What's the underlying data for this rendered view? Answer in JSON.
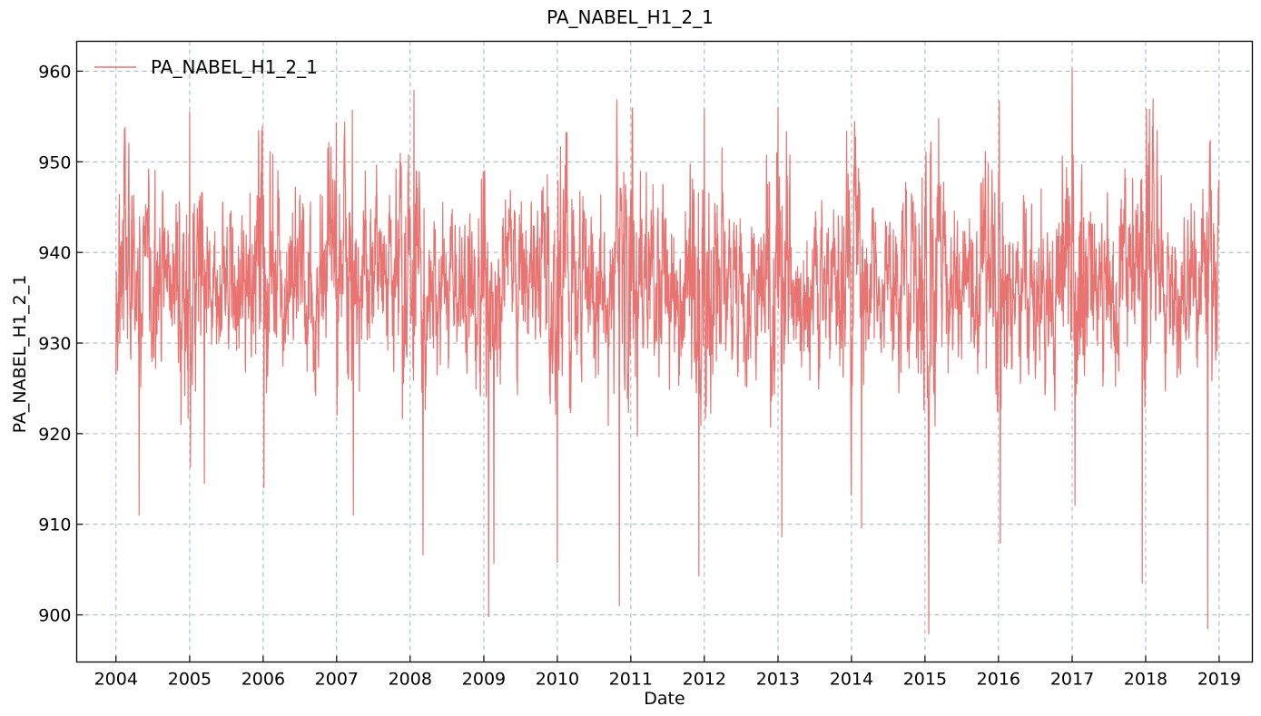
{
  "chart_data": {
    "type": "line",
    "title": "PA_NABEL_H1_2_1",
    "xlabel": "Date",
    "ylabel": "PA_NABEL_H1_2_1",
    "x_ticks": [
      "2004",
      "2005",
      "2006",
      "2007",
      "2008",
      "2009",
      "2010",
      "2011",
      "2012",
      "2013",
      "2014",
      "2015",
      "2016",
      "2017",
      "2018",
      "2019"
    ],
    "y_ticks": [
      900,
      910,
      920,
      930,
      940,
      950,
      960
    ],
    "xlim": [
      "2003-06-20",
      "2019-06-15"
    ],
    "ylim": [
      894.8,
      963.3
    ],
    "grid": true,
    "legend": {
      "position": "top-left",
      "entries": [
        "PA_NABEL_H1_2_1"
      ]
    },
    "colors": {
      "series": "#e87371",
      "grid": "#a7bcc4"
    },
    "series": [
      {
        "name": "PA_NABEL_H1_2_1",
        "x_start": "2004-01-01",
        "x_end": "2018-12-31",
        "sampling": "daily",
        "stats": {
          "min": 897.9,
          "max": 960.3,
          "typical_low": 927,
          "typical_high": 946
        },
        "key_points": [
          [
            "2004-01-01",
            926.5
          ],
          [
            "2004-02-15",
            953.8
          ],
          [
            "2004-04-25",
            911.0
          ],
          [
            "2005-01-01",
            955.5
          ],
          [
            "2005-01-05",
            916.3
          ],
          [
            "2005-03-15",
            914.5
          ],
          [
            "2005-12-28",
            953.9
          ],
          [
            "2006-01-05",
            914.0
          ],
          [
            "2006-12-30",
            954.3
          ],
          [
            "2007-03-20",
            955.7
          ],
          [
            "2007-03-25",
            911.0
          ],
          [
            "2008-01-20",
            957.9
          ],
          [
            "2008-03-05",
            906.6
          ],
          [
            "2009-01-25",
            899.8
          ],
          [
            "2009-02-20",
            905.7
          ],
          [
            "2010-01-01",
            905.8
          ],
          [
            "2010-11-05",
            901.0
          ],
          [
            "2011-12-05",
            904.3
          ],
          [
            "2012-01-01",
            955.8
          ],
          [
            "2013-01-01",
            956.0
          ],
          [
            "2013-01-20",
            908.6
          ],
          [
            "2014-02-20",
            909.6
          ],
          [
            "2015-01-20",
            897.9
          ],
          [
            "2015-03-10",
            954.8
          ],
          [
            "2016-01-05",
            956.7
          ],
          [
            "2016-01-10",
            907.9
          ],
          [
            "2017-01-01",
            960.3
          ],
          [
            "2017-01-15",
            912.1
          ],
          [
            "2017-12-15",
            903.5
          ],
          [
            "2018-01-05",
            955.8
          ],
          [
            "2018-01-20",
            955.8
          ],
          [
            "2018-11-05",
            898.5
          ],
          [
            "2018-12-31",
            948.0
          ]
        ]
      }
    ]
  }
}
